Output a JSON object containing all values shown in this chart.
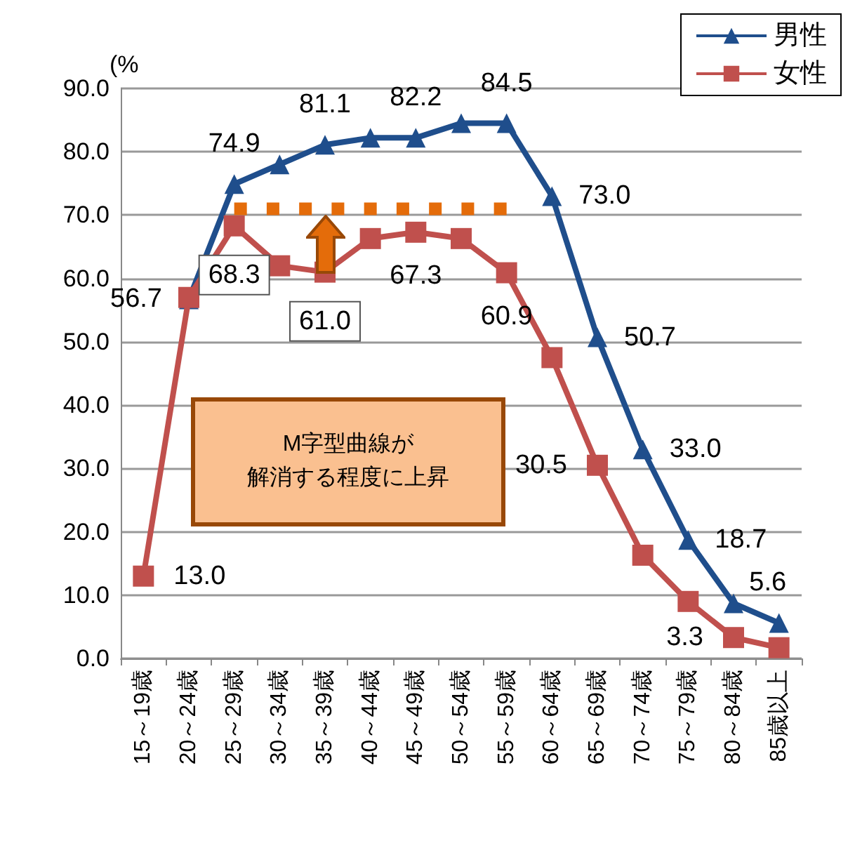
{
  "chart_data": {
    "type": "line",
    "ylabel": "(%",
    "categories": [
      "15～19歳",
      "20～24歳",
      "25～29歳",
      "30～34歳",
      "35～39歳",
      "40～44歳",
      "45～49歳",
      "50～54歳",
      "55～59歳",
      "60～64歳",
      "65～69歳",
      "70～74歳",
      "75～79歳",
      "80～84歳",
      "85歳以上"
    ],
    "series": [
      {
        "name": "男性",
        "color": "#1f4e8c",
        "marker": "triangle",
        "values": [
          null,
          56.7,
          74.9,
          78.0,
          81.1,
          82.2,
          82.2,
          84.5,
          84.5,
          73.0,
          50.7,
          33.0,
          18.7,
          8.7,
          5.6
        ],
        "value_labels": [
          null,
          "56.7",
          "74.9",
          null,
          "81.1",
          null,
          "82.2",
          null,
          "84.5",
          "73.0",
          "50.7",
          "33.0",
          "18.7",
          null,
          "5.6"
        ]
      },
      {
        "name": "女性",
        "color": "#c0504d",
        "marker": "square",
        "values": [
          13.0,
          57.0,
          68.3,
          62.0,
          61.0,
          66.3,
          67.3,
          66.3,
          60.9,
          47.5,
          30.5,
          16.3,
          9.0,
          3.3,
          1.7
        ],
        "value_labels": [
          "13.0",
          null,
          "68.3",
          null,
          "61.0",
          null,
          "67.3",
          null,
          "60.9",
          null,
          "30.5",
          null,
          null,
          "3.3",
          null
        ]
      },
      {
        "color": "#e46c0a",
        "marker": "none",
        "line_style": "dotted",
        "values": [
          null,
          null,
          71,
          71,
          71,
          71,
          71,
          71,
          71,
          null,
          null,
          null,
          null,
          null,
          null
        ]
      }
    ],
    "ylim": [
      0,
      90
    ],
    "yticks": [
      {
        "value": 0,
        "label": "0.0"
      },
      {
        "value": 10,
        "label": "10.0"
      },
      {
        "value": 20,
        "label": "20.0"
      },
      {
        "value": 30,
        "label": "30.0"
      },
      {
        "value": 40,
        "label": "40.0"
      },
      {
        "value": 50,
        "label": "50.0"
      },
      {
        "value": 60,
        "label": "60.0"
      },
      {
        "value": 70,
        "label": "70.0"
      },
      {
        "value": 80,
        "label": "80.0"
      },
      {
        "value": 90,
        "label": "90.0"
      }
    ],
    "grid": "y",
    "legend": "top right",
    "annotations": [
      "M字型曲線が",
      "解消する程度に上昇"
    ]
  }
}
